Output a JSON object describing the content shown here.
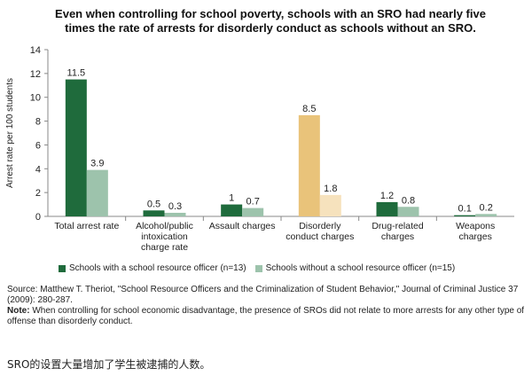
{
  "chart_data": {
    "type": "bar",
    "title": "Even when controlling for school poverty, schools with an SRO had nearly five times the rate of arrests for disorderly conduct as schools without an SRO.",
    "ylabel": "Arrest rate per 100 students",
    "xlabel": "",
    "ylim": [
      0,
      14
    ],
    "yticks": [
      0,
      2,
      4,
      6,
      8,
      10,
      12,
      14
    ],
    "categories": [
      [
        "Total arrest rate"
      ],
      [
        "Alcohol/public",
        "intoxication",
        "charge rate"
      ],
      [
        "Assault charges"
      ],
      [
        "Disorderly",
        "conduct charges"
      ],
      [
        "Drug-related",
        "charges"
      ],
      [
        "Weapons",
        "charges"
      ]
    ],
    "series": [
      {
        "name": "Schools with a school resource officer (n=13)",
        "values": [
          11.5,
          0.5,
          1,
          8.5,
          1.2,
          0.1
        ],
        "labels": [
          "11.5",
          "0.5",
          "1",
          "8.5",
          "1.2",
          "0.1"
        ],
        "colors": [
          "#1f6b3c",
          "#1f6b3c",
          "#1f6b3c",
          "#e9c37a",
          "#1f6b3c",
          "#1f6b3c"
        ]
      },
      {
        "name": "Schools without a school resource officer (n=15)",
        "values": [
          3.9,
          0.3,
          0.7,
          1.8,
          0.8,
          0.2
        ],
        "labels": [
          "3.9",
          "0.3",
          "0.7",
          "1.8",
          "0.8",
          "0.2"
        ],
        "colors": [
          "#9dc3ac",
          "#9dc3ac",
          "#9dc3ac",
          "#f6e2bd",
          "#9dc3ac",
          "#9dc3ac"
        ]
      }
    ],
    "grid": false,
    "legend_position": "bottom"
  },
  "legend": {
    "items": [
      {
        "label": "Schools with a school resource officer (n=13)",
        "color": "#1f6b3c"
      },
      {
        "label": "Schools without a school resource officer (n=15)",
        "color": "#9dc3ac"
      }
    ]
  },
  "source": {
    "text": "Source: Matthew T. Theriot, \"School Resource Officers and the Criminalization of Student Behavior,\" Journal of Criminal Justice 37 (2009): 280-287.",
    "note_label": "Note:",
    "note_text": " When controlling for school economic disadvantage, the presence of SROs did not relate to more arrests for any other type of offense than disorderly conduct."
  },
  "caption": "SRO的设置大量增加了学生被逮捕的人数。"
}
